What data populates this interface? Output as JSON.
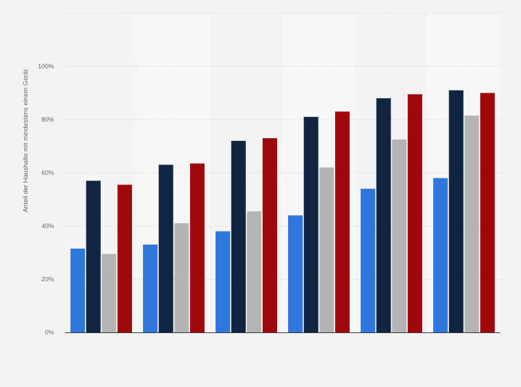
{
  "chart_data": {
    "type": "bar",
    "title": "",
    "xlabel": "",
    "ylabel": "Anteil der Haushalte mit mindestens einem Gerät",
    "ylim": [
      0,
      120
    ],
    "y_ticks": [
      0,
      20,
      40,
      60,
      80,
      100
    ],
    "y_tick_labels": [
      "0%",
      "20%",
      "40%",
      "60%",
      "80%",
      "100%"
    ],
    "grid": true,
    "legend": "none",
    "categories": [
      "",
      "",
      "",
      "",
      "",
      ""
    ],
    "series": [
      {
        "color": "#2f77dc",
        "values": [
          31.5,
          33,
          38,
          44,
          54,
          58
        ]
      },
      {
        "color": "#0f243f",
        "values": [
          57,
          63,
          72,
          81,
          88,
          91
        ]
      },
      {
        "color": "#b4b4b4",
        "values": [
          29.5,
          41,
          45.5,
          62,
          72.5,
          81.5
        ]
      },
      {
        "color": "#a0080c",
        "values": [
          55.5,
          63.5,
          73,
          83,
          89.5,
          90
        ]
      }
    ]
  }
}
